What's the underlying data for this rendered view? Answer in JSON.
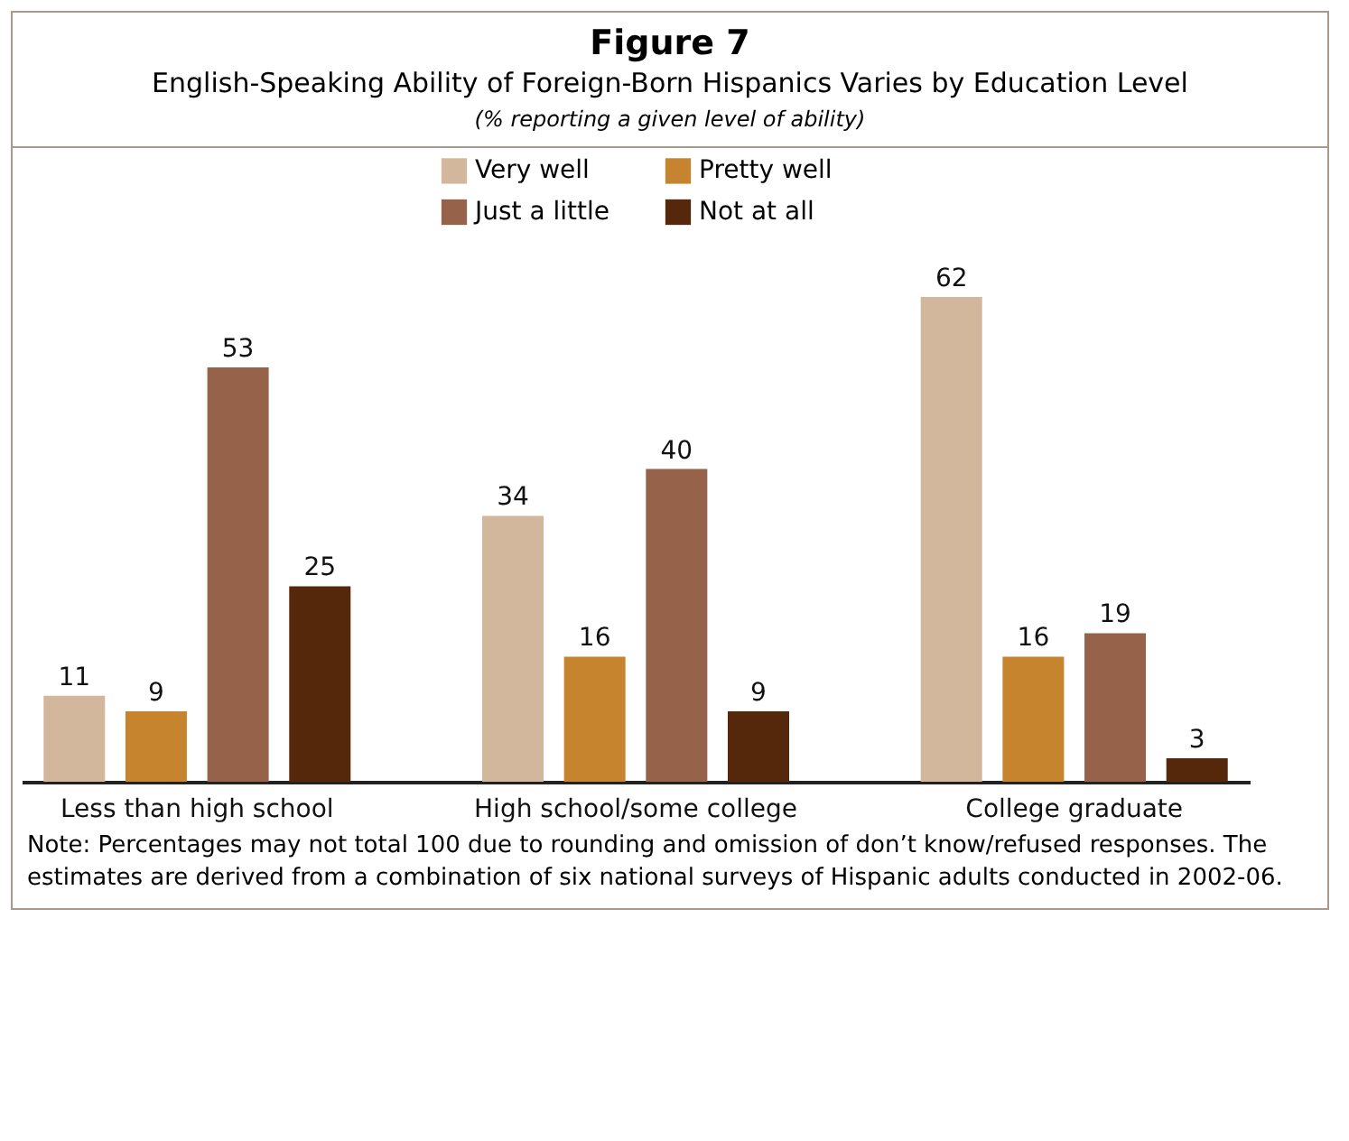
{
  "chart_data": {
    "type": "bar",
    "title": "Figure 7",
    "subtitle": "English-Speaking Ability of Foreign-Born Hispanics Varies by Education Level",
    "categories": [
      "Less than high school",
      "High school/some college",
      "College graduate"
    ],
    "series": [
      {
        "name": "Very well",
        "color": "#d3b79c",
        "values": [
          11,
          34,
          62
        ]
      },
      {
        "name": "Pretty well",
        "color": "#c6842e",
        "values": [
          9,
          16,
          16
        ]
      },
      {
        "name": "Just a little",
        "color": "#96634a",
        "values": [
          53,
          40,
          19
        ]
      },
      {
        "name": "Not at all",
        "color": "#55280c",
        "values": [
          25,
          9,
          3
        ]
      }
    ],
    "data_labels": true,
    "legend": "top",
    "grid": false,
    "annotations": [
      "(% reporting a given level of ability)",
      "Note: Percentages may not total 100 due to rounding and omission of don’t know/refused responses. The estimates are derived from a combination of six national surveys of Hispanic adults conducted in 2002-06."
    ]
  }
}
